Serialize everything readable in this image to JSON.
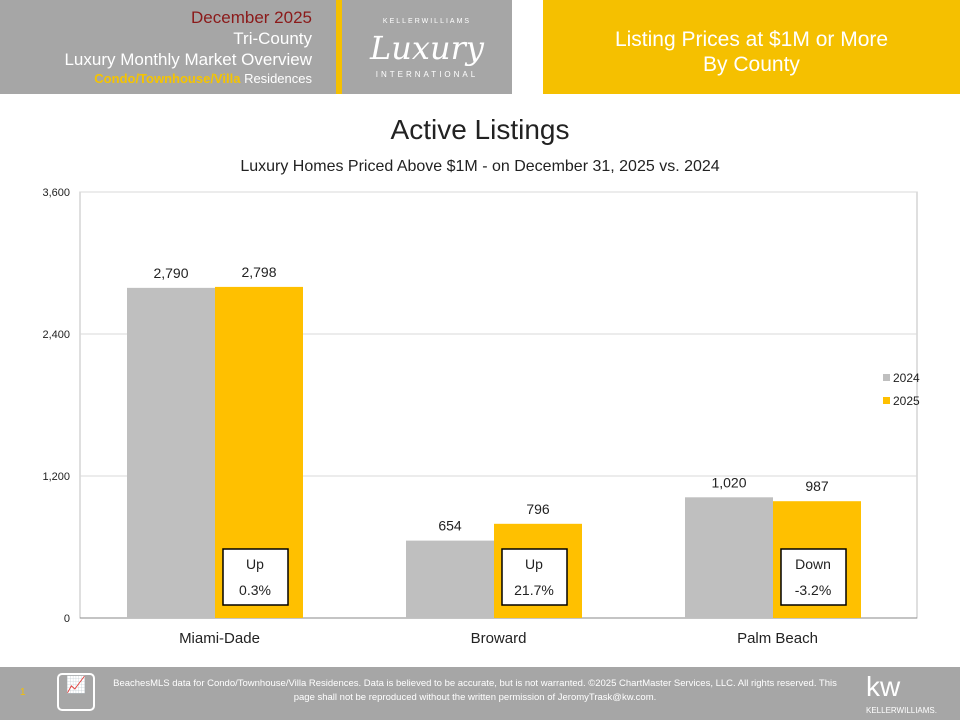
{
  "header": {
    "date": "December 2025",
    "region": "Tri-County",
    "report": "Luxury Monthly Market Overview",
    "property_type": "Condo/Townhouse/Villa",
    "property_suffix": "Residences",
    "logo": {
      "top": "KELLERWILLIAMS",
      "main": "Luxury",
      "bottom": "INTERNATIONAL"
    },
    "right_line1": "Listing Prices at $1M or More",
    "right_line2": "By County"
  },
  "chart_data": {
    "type": "bar",
    "title": "Active Listings",
    "subtitle": "Luxury Homes Priced Above $1M - on December 31,  2025 vs. 2024",
    "categories": [
      "Miami-Dade",
      "Broward",
      "Palm Beach"
    ],
    "series": [
      {
        "name": "2024",
        "color": "#bfbfbf",
        "values": [
          2790,
          654,
          1020
        ],
        "labels": [
          "2,790",
          "654",
          "1,020"
        ]
      },
      {
        "name": "2025",
        "color": "#ffc000",
        "values": [
          2798,
          796,
          987
        ],
        "labels": [
          "2,798",
          "796",
          "987"
        ]
      }
    ],
    "ylim": [
      0,
      3600
    ],
    "yticks": [
      0,
      1200,
      2400,
      3600
    ],
    "ytick_labels": [
      "0",
      "1,200",
      "2,400",
      "3,600"
    ],
    "grid": true,
    "legend": "right",
    "annotations": [
      {
        "dir": "Up",
        "pct": "0.3%"
      },
      {
        "dir": "Up",
        "pct": "21.7%"
      },
      {
        "dir": "Down",
        "pct": "-3.2%"
      }
    ]
  },
  "footer": {
    "page": "1",
    "logo_text": "ChartMaster Services LLC",
    "text": "BeachesMLS data for Condo/Townhouse/Villa Residences.  Data is believed to be accurate, but is not warranted.   ©2025  ChartMaster Services, LLC.  All rights reserved. This page shall not be reproduced without the written permission of JeromyTrask@kw.com.",
    "kw": "kw",
    "kw_sub": "KELLERWILLIAMS."
  }
}
